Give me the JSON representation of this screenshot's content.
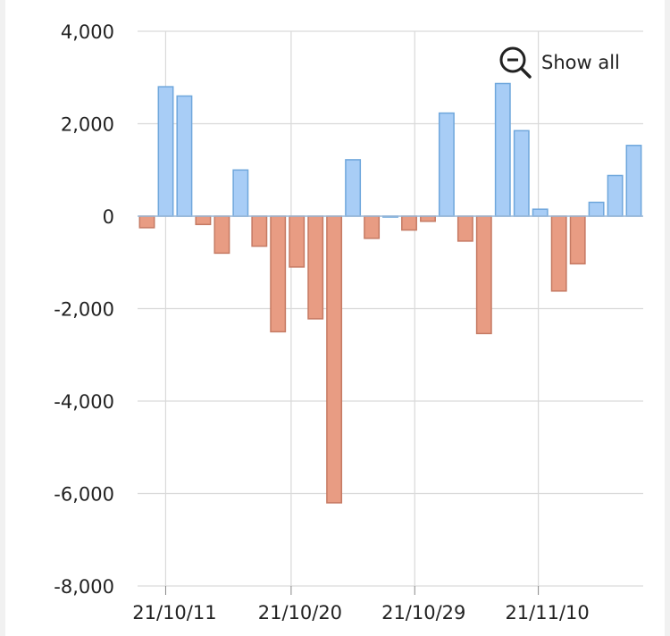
{
  "controls": {
    "show_all_label": "Show all",
    "show_all_icon": "zoom-out-icon"
  },
  "colors": {
    "positive_fill": "#a8cdf6",
    "positive_stroke": "#6fa7dc",
    "negative_fill": "#e89c83",
    "negative_stroke": "#c57a63",
    "grid": "#d9d9d9",
    "zero_line": "#9ab8d8"
  },
  "chart_data": {
    "type": "bar",
    "title": "",
    "xlabel": "",
    "ylabel": "",
    "ylim": [
      -8000,
      4000
    ],
    "yticks": [
      4000,
      2000,
      0,
      -2000,
      -4000,
      -6000,
      -8000
    ],
    "ytick_labels": [
      "4,000",
      "2,000",
      "0",
      "-2,000",
      "-4,000",
      "-6,000",
      "-8,000"
    ],
    "xticks": [
      "21/10/11",
      "21/10/20",
      "21/10/29",
      "21/11/10"
    ],
    "grid": true,
    "values": [
      -250,
      2800,
      2600,
      -180,
      -800,
      1000,
      -650,
      -2500,
      -1100,
      -2220,
      -6200,
      1220,
      -480,
      0,
      -300,
      -110,
      2230,
      -540,
      -2540,
      2870,
      1850,
      150,
      -1620,
      -1030,
      300,
      880,
      1530
    ]
  }
}
